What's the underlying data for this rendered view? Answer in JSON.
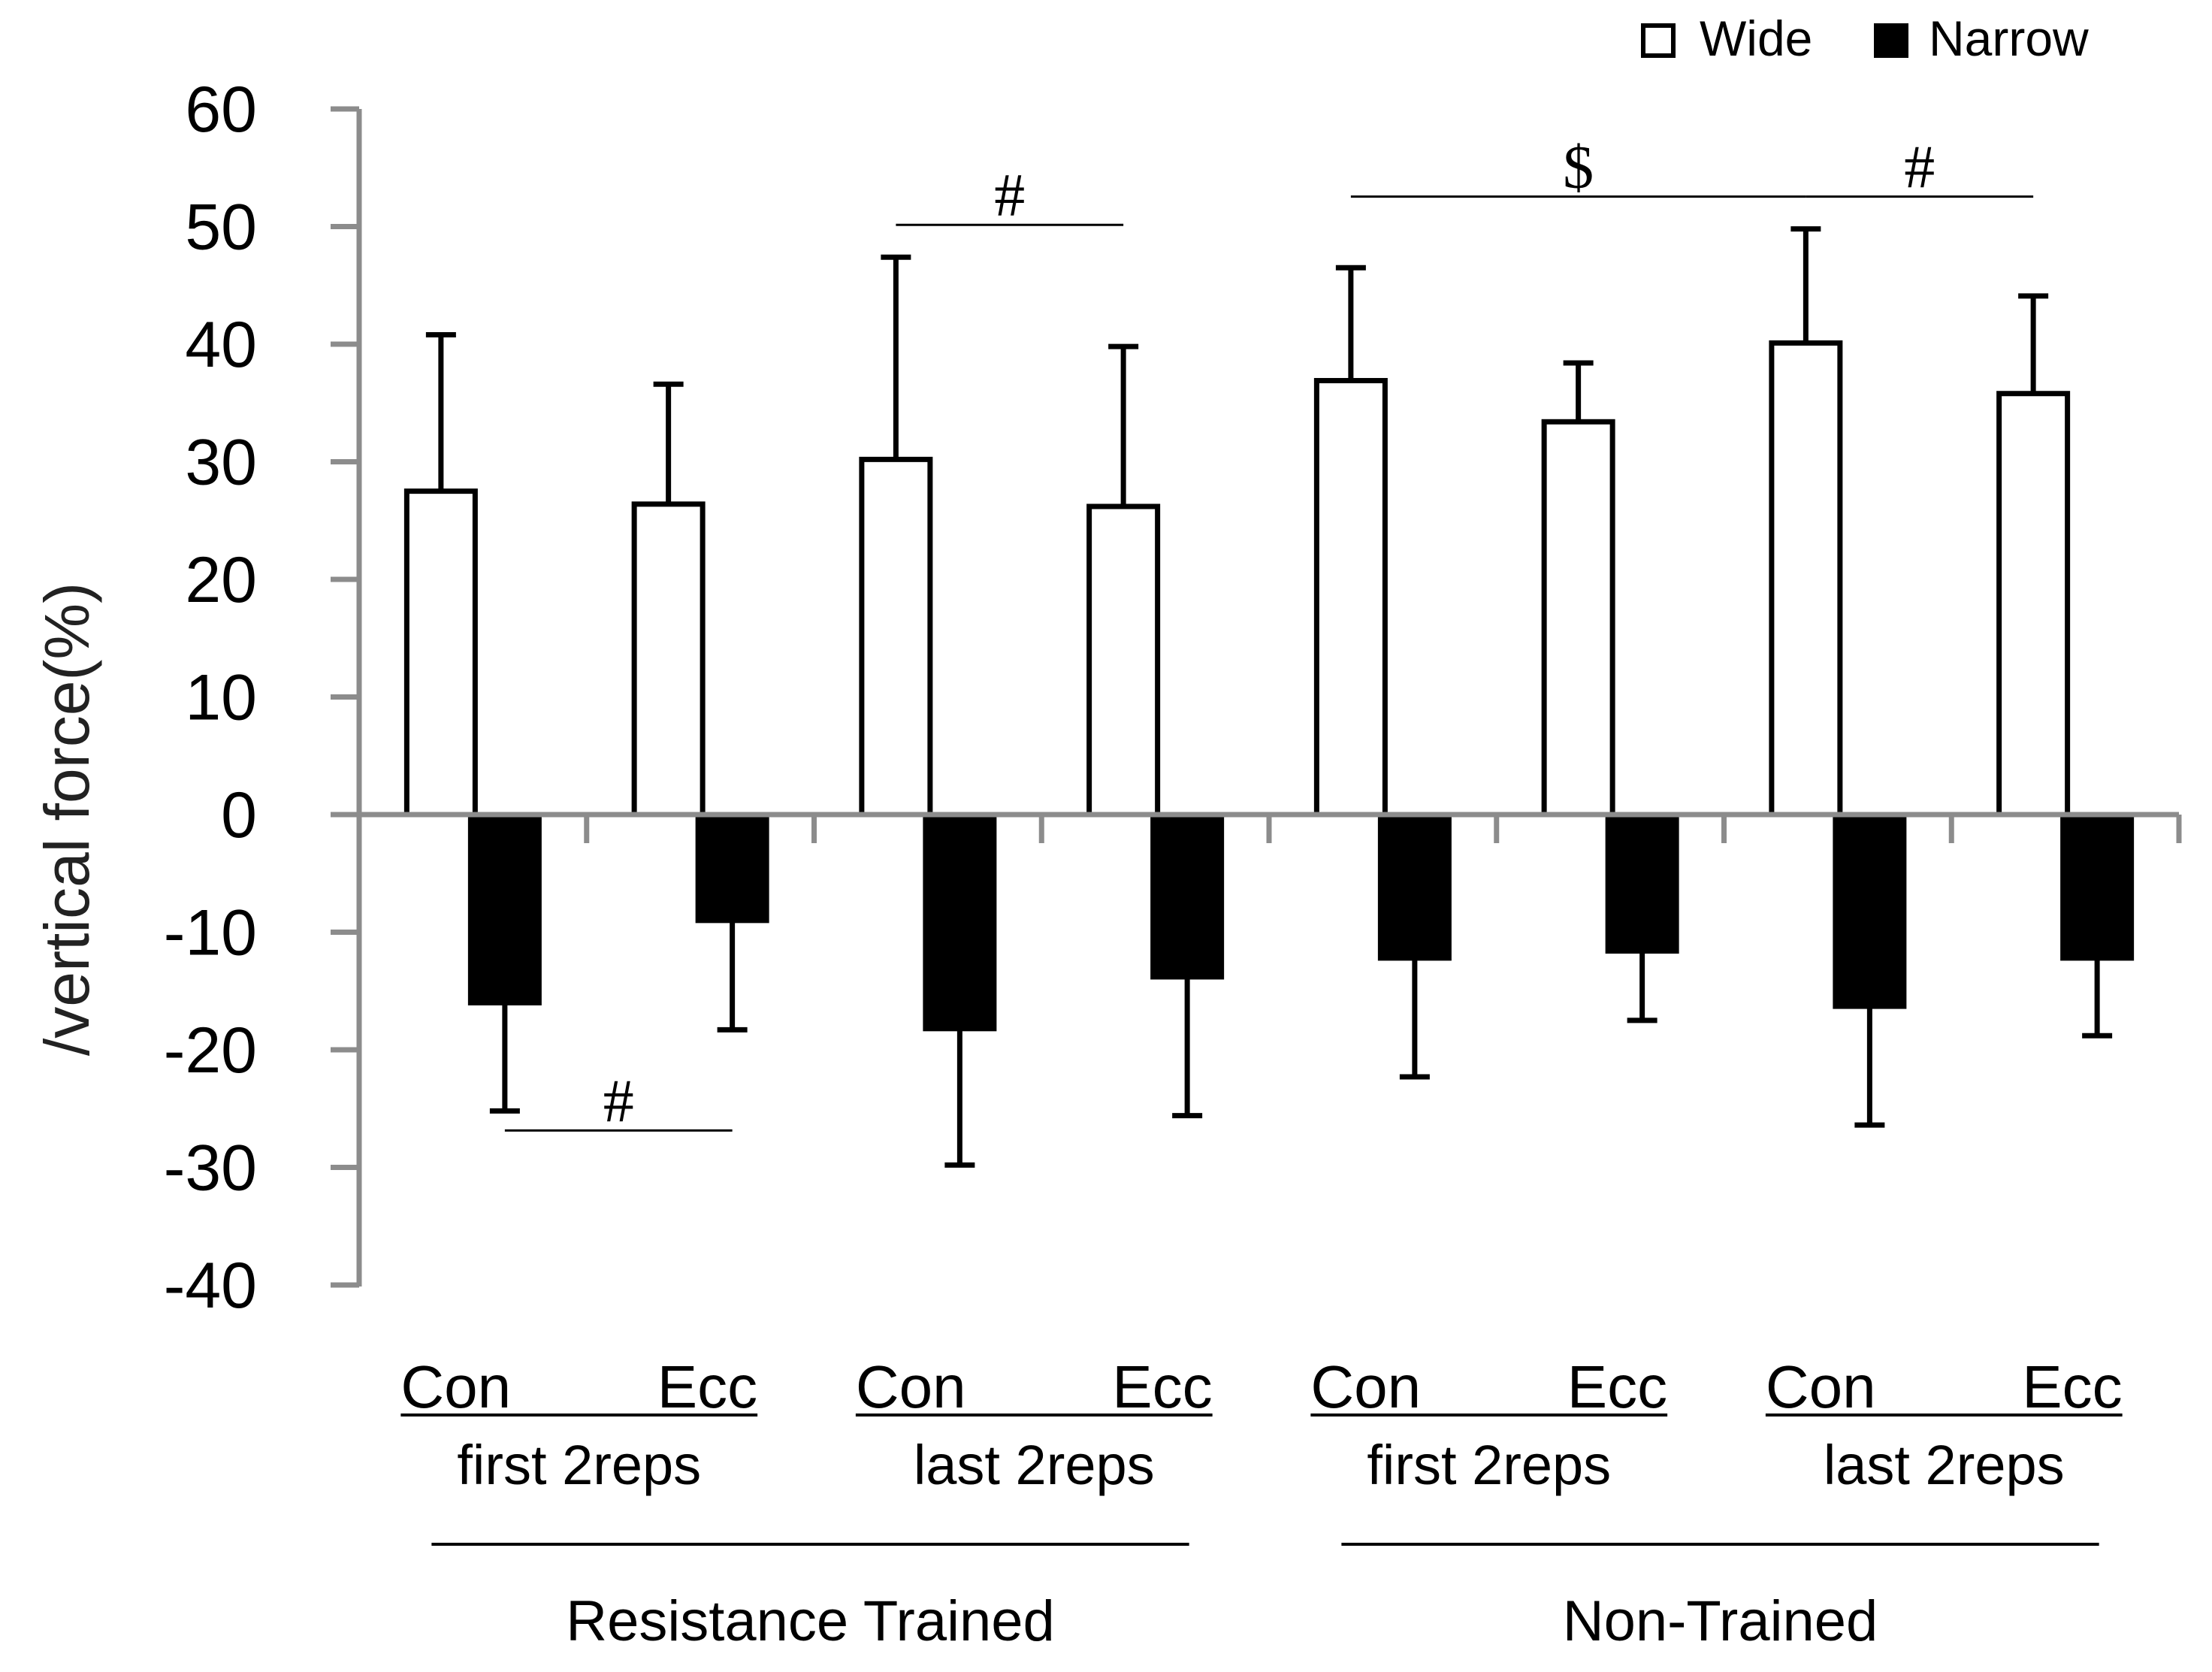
{
  "chart_data": {
    "type": "bar",
    "ylabel": "/vertical force(%)",
    "ylim": [
      -40,
      60
    ],
    "yticks": [
      60,
      50,
      40,
      30,
      20,
      10,
      0,
      -10,
      -20,
      -30,
      -40
    ],
    "ytick_labels": [
      "60",
      "50",
      "40",
      "30",
      "20",
      "10",
      "0",
      "-10",
      "-20",
      "-30",
      "-40"
    ],
    "categories": [
      {
        "phase": "Con",
        "rep_group": "first 2reps",
        "training": "Resistance Trained"
      },
      {
        "phase": "Ecc",
        "rep_group": "first 2reps",
        "training": "Resistance Trained"
      },
      {
        "phase": "Con",
        "rep_group": "last 2reps",
        "training": "Resistance Trained"
      },
      {
        "phase": "Ecc",
        "rep_group": "last 2reps",
        "training": "Resistance Trained"
      },
      {
        "phase": "Con",
        "rep_group": "first 2reps",
        "training": "Non-Trained"
      },
      {
        "phase": "Ecc",
        "rep_group": "first 2reps",
        "training": "Non-Trained"
      },
      {
        "phase": "Con",
        "rep_group": "last 2reps",
        "training": "Non-Trained"
      },
      {
        "phase": "Ecc",
        "rep_group": "last 2reps",
        "training": "Non-Trained"
      }
    ],
    "rep_groups": [
      {
        "label": "first 2reps",
        "con": "Con",
        "ecc": "Ecc"
      },
      {
        "label": "last 2reps",
        "con": "Con",
        "ecc": "Ecc"
      },
      {
        "label": "first 2reps",
        "con": "Con",
        "ecc": "Ecc"
      },
      {
        "label": "last 2reps",
        "con": "Con",
        "ecc": "Ecc"
      }
    ],
    "training_groups": [
      "Resistance Trained",
      "Non-Trained"
    ],
    "series": [
      {
        "name": "Wide",
        "color": "#ffffff",
        "stroke": "#000000",
        "values": [
          27.5,
          26.4,
          30.2,
          26.2,
          36.9,
          33.4,
          40.1,
          35.8
        ],
        "errors": [
          13.3,
          10.2,
          17.2,
          13.6,
          9.6,
          5.0,
          9.7,
          8.3
        ]
      },
      {
        "name": "Narrow",
        "color": "#000000",
        "stroke": "#000000",
        "values": [
          -16.0,
          -9.0,
          -18.2,
          -13.8,
          -12.2,
          -11.6,
          -16.3,
          -12.2
        ],
        "errors": [
          9.2,
          9.3,
          11.6,
          11.8,
          10.1,
          5.9,
          10.1,
          6.6
        ]
      }
    ],
    "legend": {
      "position": "top-right",
      "items": [
        "Wide",
        "Narrow"
      ]
    },
    "annotations": [
      {
        "symbol": "#",
        "between": [
          [
            0,
            "Narrow"
          ],
          [
            1,
            "Narrow"
          ]
        ]
      },
      {
        "symbol": "#",
        "between": [
          [
            2,
            "Wide"
          ],
          [
            3,
            "Wide"
          ]
        ]
      },
      {
        "symbol": "$",
        "between": [
          [
            4,
            "Wide"
          ],
          [
            6,
            "Wide"
          ]
        ]
      },
      {
        "symbol": "#",
        "between": [
          [
            6,
            "Wide"
          ],
          [
            7,
            "Wide"
          ]
        ]
      }
    ]
  }
}
